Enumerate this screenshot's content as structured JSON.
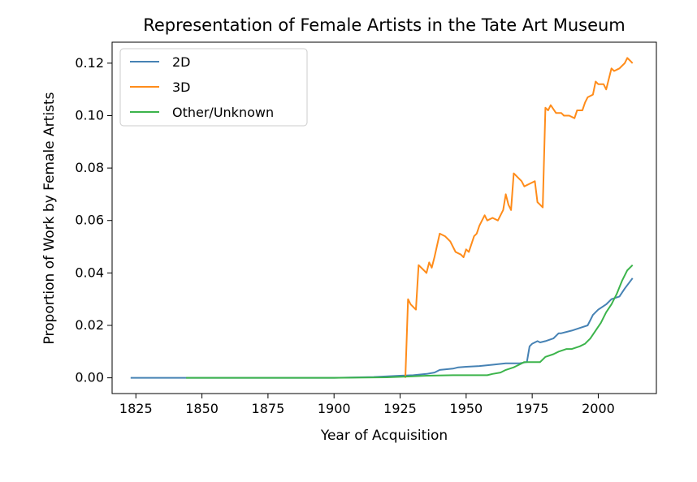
{
  "chart_data": {
    "type": "line",
    "title": "Representation of Female Artists in the Tate Art Museum",
    "xlabel": "Year of Acquisition",
    "ylabel": "Proportion of Work by Female Artists",
    "xlim": [
      1816,
      2022
    ],
    "ylim": [
      -0.006,
      0.128
    ],
    "xticks": [
      1825,
      1850,
      1875,
      1900,
      1925,
      1950,
      1975,
      2000
    ],
    "yticks": [
      0.0,
      0.02,
      0.04,
      0.06,
      0.08,
      0.1,
      0.12
    ],
    "ytick_labels": [
      "0.00",
      "0.02",
      "0.04",
      "0.06",
      "0.08",
      "0.10",
      "0.12"
    ],
    "grid": false,
    "legend_position": "upper-left",
    "series": [
      {
        "name": "2D",
        "color": "#4682b4",
        "x": [
          1823,
          1850,
          1880,
          1900,
          1915,
          1925,
          1930,
          1935,
          1938,
          1940,
          1945,
          1947,
          1950,
          1955,
          1960,
          1965,
          1970,
          1973,
          1974,
          1975,
          1977,
          1978,
          1980,
          1983,
          1985,
          1986,
          1990,
          1993,
          1996,
          1997,
          1998,
          2000,
          2003,
          2005,
          2008,
          2010,
          2013
        ],
        "y": [
          0.0,
          0.0,
          0.0,
          0.0,
          0.0003,
          0.0008,
          0.001,
          0.0015,
          0.002,
          0.003,
          0.0035,
          0.004,
          0.0042,
          0.0045,
          0.005,
          0.0055,
          0.0055,
          0.006,
          0.012,
          0.013,
          0.014,
          0.0135,
          0.014,
          0.015,
          0.017,
          0.017,
          0.018,
          0.019,
          0.02,
          0.022,
          0.024,
          0.026,
          0.028,
          0.03,
          0.031,
          0.034,
          0.038
        ]
      },
      {
        "name": "3D",
        "color": "#ff8c1a",
        "x": [
          1927,
          1928,
          1929,
          1931,
          1932,
          1934,
          1935,
          1936,
          1937,
          1938,
          1940,
          1942,
          1944,
          1946,
          1948,
          1949,
          1950,
          1951,
          1953,
          1954,
          1955,
          1957,
          1958,
          1960,
          1962,
          1964,
          1965,
          1966,
          1967,
          1968,
          1969,
          1971,
          1972,
          1974,
          1976,
          1977,
          1978,
          1979,
          1980,
          1981,
          1982,
          1984,
          1986,
          1987,
          1989,
          1991,
          1992,
          1994,
          1995,
          1996,
          1998,
          1999,
          2000,
          2002,
          2003,
          2005,
          2006,
          2008,
          2010,
          2011,
          2012,
          2013
        ],
        "y": [
          0.0,
          0.03,
          0.028,
          0.026,
          0.043,
          0.041,
          0.04,
          0.044,
          0.042,
          0.046,
          0.055,
          0.054,
          0.052,
          0.048,
          0.047,
          0.046,
          0.049,
          0.048,
          0.054,
          0.055,
          0.058,
          0.062,
          0.06,
          0.061,
          0.06,
          0.064,
          0.07,
          0.066,
          0.064,
          0.078,
          0.077,
          0.075,
          0.073,
          0.074,
          0.075,
          0.067,
          0.066,
          0.065,
          0.103,
          0.102,
          0.104,
          0.101,
          0.101,
          0.1,
          0.1,
          0.099,
          0.102,
          0.102,
          0.105,
          0.107,
          0.108,
          0.113,
          0.112,
          0.112,
          0.11,
          0.118,
          0.117,
          0.118,
          0.12,
          0.122,
          0.121,
          0.12
        ]
      },
      {
        "name": "Other/Unknown",
        "color": "#3cb44b",
        "x": [
          1844,
          1880,
          1900,
          1920,
          1928,
          1935,
          1945,
          1958,
          1960,
          1963,
          1965,
          1968,
          1970,
          1972,
          1975,
          1978,
          1980,
          1983,
          1985,
          1988,
          1990,
          1993,
          1995,
          1997,
          1999,
          2001,
          2003,
          2005,
          2007,
          2009,
          2011,
          2013
        ],
        "y": [
          0.0,
          0.0,
          0.0,
          0.0002,
          0.0005,
          0.0008,
          0.001,
          0.001,
          0.0015,
          0.002,
          0.003,
          0.004,
          0.005,
          0.006,
          0.006,
          0.006,
          0.008,
          0.009,
          0.01,
          0.011,
          0.011,
          0.012,
          0.013,
          0.015,
          0.018,
          0.021,
          0.025,
          0.028,
          0.032,
          0.037,
          0.041,
          0.043
        ]
      }
    ]
  }
}
